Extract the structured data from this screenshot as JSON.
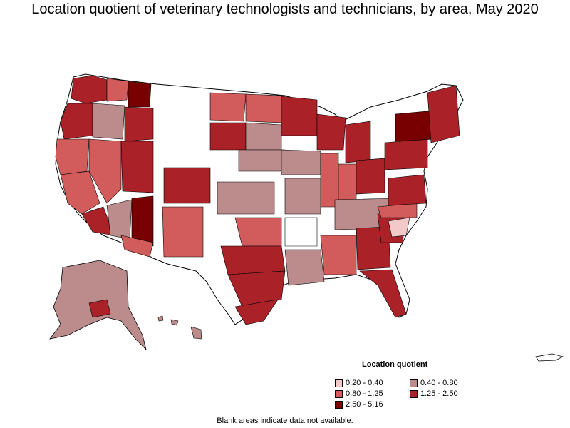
{
  "title": "Location quotient of veterinary technologists and technicians, by area, May 2020",
  "legend": {
    "title": "Location quotient",
    "items": [
      {
        "label": "0.20 - 0.40",
        "color": "#f2c8c8"
      },
      {
        "label": "0.40 - 0.80",
        "color": "#bc8c8c"
      },
      {
        "label": "0.80 - 1.25",
        "color": "#d25c5c"
      },
      {
        "label": "1.25 - 2.50",
        "color": "#aa2228"
      },
      {
        "label": "2.50 - 5.16",
        "color": "#780000"
      }
    ]
  },
  "footnote": "Blank areas indicate data not available.",
  "map": {
    "region": "United States, Alaska, Hawaii, Puerto Rico",
    "colors": {
      "blank": "#ffffff",
      "border": "#000000",
      "q1": "#f2c8c8",
      "q2": "#bc8c8c",
      "q3": "#d25c5c",
      "q4": "#aa2228",
      "q5": "#780000"
    }
  }
}
